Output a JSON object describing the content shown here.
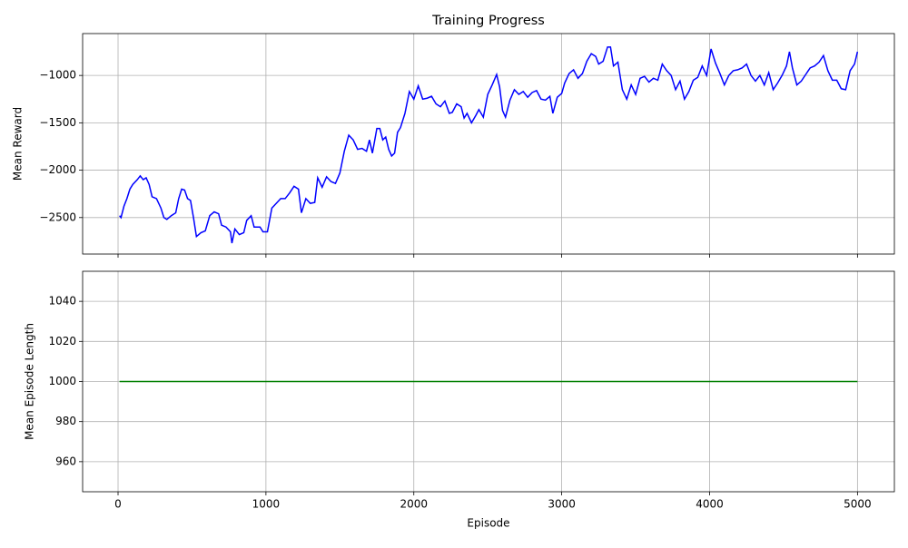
{
  "chart_data": [
    {
      "type": "line",
      "title": "Training Progress",
      "ylabel": "Mean Reward",
      "color": "#0000ff",
      "grid": true,
      "show_xtick_labels": false,
      "xlim": [
        -239.5,
        5249.5
      ],
      "xticks": [
        0,
        1000,
        2000,
        3000,
        4000,
        5000
      ],
      "ylim": [
        -2885,
        -558
      ],
      "yticks": [
        {
          "value": -2500,
          "label": "−2500"
        },
        {
          "value": -2000,
          "label": "−2000"
        },
        {
          "value": -1500,
          "label": "−1500"
        },
        {
          "value": -1000,
          "label": "−1000"
        }
      ],
      "x": [
        10,
        20,
        40,
        60,
        80,
        100,
        130,
        150,
        170,
        190,
        210,
        230,
        260,
        290,
        310,
        330,
        360,
        390,
        410,
        430,
        450,
        470,
        490,
        510,
        530,
        560,
        590,
        620,
        650,
        680,
        700,
        730,
        760,
        770,
        790,
        820,
        850,
        870,
        900,
        920,
        960,
        980,
        1010,
        1040,
        1070,
        1100,
        1130,
        1160,
        1190,
        1220,
        1240,
        1270,
        1300,
        1330,
        1350,
        1380,
        1410,
        1440,
        1470,
        1500,
        1530,
        1560,
        1590,
        1620,
        1650,
        1680,
        1700,
        1720,
        1750,
        1770,
        1790,
        1810,
        1830,
        1850,
        1870,
        1890,
        1910,
        1940,
        1970,
        2000,
        2030,
        2060,
        2090,
        2120,
        2150,
        2180,
        2210,
        2240,
        2260,
        2290,
        2320,
        2340,
        2360,
        2390,
        2420,
        2440,
        2470,
        2500,
        2530,
        2560,
        2580,
        2600,
        2620,
        2650,
        2680,
        2710,
        2740,
        2770,
        2800,
        2830,
        2860,
        2890,
        2920,
        2940,
        2970,
        3000,
        3020,
        3050,
        3080,
        3110,
        3140,
        3170,
        3200,
        3230,
        3250,
        3280,
        3310,
        3330,
        3350,
        3380,
        3410,
        3440,
        3470,
        3500,
        3530,
        3560,
        3590,
        3620,
        3650,
        3680,
        3710,
        3740,
        3770,
        3800,
        3830,
        3860,
        3890,
        3920,
        3950,
        3980,
        4010,
        4040,
        4070,
        4100,
        4130,
        4160,
        4190,
        4220,
        4250,
        4280,
        4310,
        4340,
        4370,
        4400,
        4430,
        4460,
        4490,
        4520,
        4540,
        4560,
        4590,
        4620,
        4650,
        4680,
        4710,
        4740,
        4770,
        4800,
        4830,
        4860,
        4890,
        4920,
        4950,
        4980,
        5000
      ],
      "values": [
        -2480,
        -2500,
        -2380,
        -2300,
        -2200,
        -2150,
        -2100,
        -2060,
        -2100,
        -2080,
        -2150,
        -2280,
        -2300,
        -2400,
        -2500,
        -2520,
        -2480,
        -2450,
        -2300,
        -2200,
        -2210,
        -2300,
        -2320,
        -2500,
        -2700,
        -2660,
        -2640,
        -2480,
        -2440,
        -2460,
        -2580,
        -2600,
        -2650,
        -2770,
        -2620,
        -2680,
        -2660,
        -2530,
        -2480,
        -2600,
        -2600,
        -2650,
        -2650,
        -2400,
        -2350,
        -2300,
        -2300,
        -2240,
        -2170,
        -2200,
        -2450,
        -2300,
        -2350,
        -2340,
        -2080,
        -2180,
        -2070,
        -2120,
        -2140,
        -2030,
        -1800,
        -1630,
        -1680,
        -1780,
        -1770,
        -1800,
        -1680,
        -1820,
        -1560,
        -1560,
        -1680,
        -1650,
        -1780,
        -1850,
        -1820,
        -1600,
        -1550,
        -1400,
        -1170,
        -1250,
        -1110,
        -1250,
        -1240,
        -1220,
        -1300,
        -1330,
        -1270,
        -1400,
        -1390,
        -1300,
        -1330,
        -1450,
        -1400,
        -1500,
        -1420,
        -1360,
        -1440,
        -1200,
        -1100,
        -990,
        -1120,
        -1370,
        -1440,
        -1260,
        -1150,
        -1200,
        -1170,
        -1230,
        -1180,
        -1160,
        -1250,
        -1260,
        -1220,
        -1400,
        -1230,
        -1190,
        -1080,
        -980,
        -940,
        -1030,
        -980,
        -850,
        -770,
        -800,
        -880,
        -850,
        -700,
        -700,
        -900,
        -860,
        -1150,
        -1250,
        -1100,
        -1200,
        -1030,
        -1010,
        -1070,
        -1030,
        -1050,
        -880,
        -950,
        -1000,
        -1150,
        -1060,
        -1250,
        -1170,
        -1050,
        -1020,
        -900,
        -1000,
        -720,
        -870,
        -980,
        -1100,
        -1000,
        -950,
        -940,
        -920,
        -880,
        -1000,
        -1060,
        -1000,
        -1100,
        -970,
        -1150,
        -1080,
        -1000,
        -900,
        -750,
        -920,
        -1100,
        -1060,
        -990,
        -920,
        -900,
        -860,
        -790,
        -950,
        -1050,
        -1050,
        -1140,
        -1150,
        -950,
        -880,
        -750
      ]
    },
    {
      "type": "line",
      "ylabel": "Mean Episode Length",
      "xlabel": "Episode",
      "color": "#008000",
      "grid": true,
      "show_xtick_labels": true,
      "xlim": [
        -239.5,
        5249.5
      ],
      "xticks": [
        0,
        1000,
        2000,
        3000,
        4000,
        5000
      ],
      "ylim": [
        945,
        1055
      ],
      "yticks": [
        960,
        980,
        1000,
        1020,
        1040
      ],
      "x": [
        10,
        5000
      ],
      "values": [
        1000,
        1000
      ]
    }
  ]
}
